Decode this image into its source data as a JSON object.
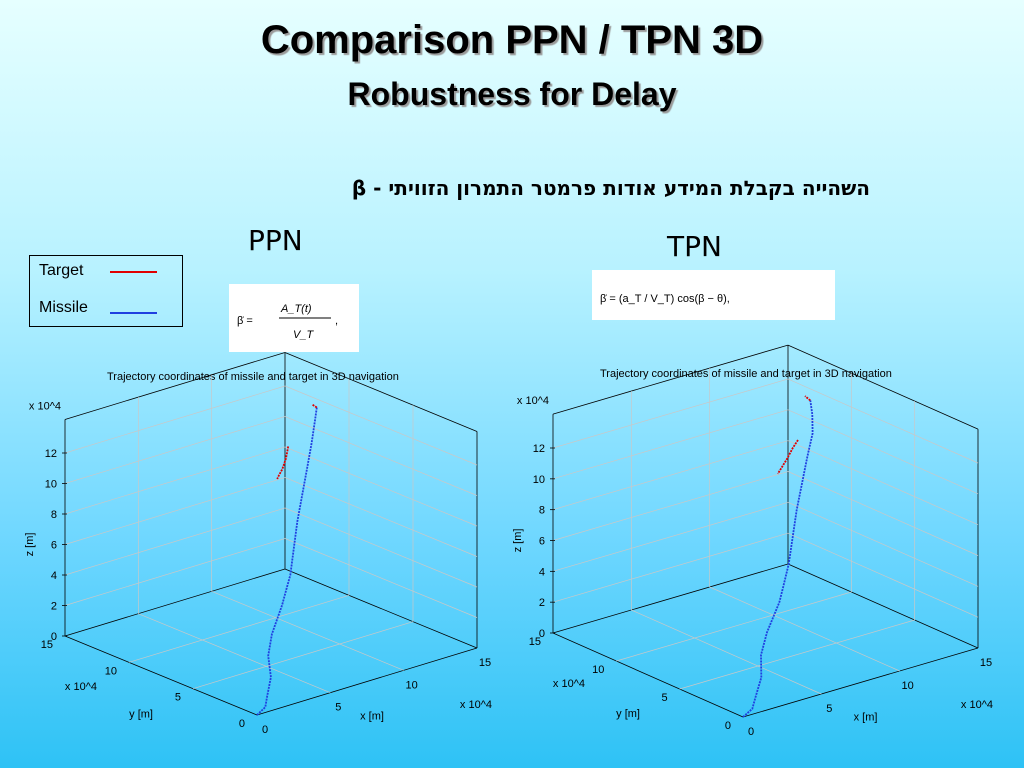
{
  "slide": {
    "title": "Comparison PPN / TPN 3D",
    "subtitle": "Robustness for Delay",
    "hebrew_text": "השהייה בקבלת המידע אודות פרמטר התמרון הזוויתי - β"
  },
  "methods": {
    "ppn": {
      "label": "PPN",
      "formula": {
        "lhs": "β̇ = ",
        "numerator": "A_T(t)",
        "denominator": "V_T",
        "tail": ","
      }
    },
    "tpn": {
      "label": "TPN",
      "formula": "β̇ = (a_T / V_T) cos(β − θ),"
    }
  },
  "legend": {
    "items": [
      {
        "label": "Target",
        "color": "#e00000"
      },
      {
        "label": "Missile",
        "color": "#2040e0"
      }
    ]
  },
  "chart_data": [
    {
      "type": "line3d",
      "title": "Trajectory coordinates of missile and target in 3D navigation",
      "xlabel": "x [m]",
      "ylabel": "y [m]",
      "zlabel": "z [m]",
      "x_multiplier": "x 10^4",
      "y_multiplier": "x 10^4",
      "z_multiplier": "x 10^4",
      "xticks": [
        "0",
        "5",
        "10",
        "15"
      ],
      "yticks": [
        "0",
        "5",
        "10",
        "15"
      ],
      "zticks": [
        "0",
        "2",
        "4",
        "6",
        "8",
        "10",
        "12"
      ],
      "grid": true,
      "series": [
        {
          "name": "Missile",
          "color": "#2040e0",
          "points": [
            [
              0,
              0,
              0
            ],
            [
              1,
              0.5,
              0.05
            ],
            [
              2,
              1.5,
              0.1
            ],
            [
              4,
              3.5,
              0.1
            ],
            [
              6,
              6,
              0.05
            ],
            [
              8,
              8,
              0.2
            ],
            [
              10,
              9.5,
              1.0
            ],
            [
              10.5,
              9.8,
              1.6
            ],
            [
              11,
              10,
              2.5
            ],
            [
              11.5,
              10.3,
              4.0
            ],
            [
              12,
              10.6,
              5.5
            ],
            [
              12.5,
              10.8,
              7.0
            ],
            [
              13,
              11,
              8.5
            ],
            [
              13.5,
              11.2,
              10.0
            ],
            [
              14,
              11.5,
              11.3
            ],
            [
              14.2,
              11.6,
              12.0
            ]
          ]
        },
        {
          "name": "Target",
          "color": "#e00000",
          "points": [
            [
              13.3,
              12.8,
              9.3
            ],
            [
              12.8,
              12.4,
              8.8
            ],
            [
              12.2,
              12.0,
              8.4
            ],
            [
              11.8,
              11.8,
              8.2
            ],
            [
              11.5,
              11.6,
              8.1
            ]
          ]
        },
        {
          "name": "Target (top)",
          "color": "#e00000",
          "points": [
            [
              14.2,
              11.6,
              12.0
            ],
            [
              14.0,
              11.7,
              12.2
            ]
          ]
        }
      ]
    },
    {
      "type": "line3d",
      "title": "Trajectory coordinates of missile and target in 3D navigation",
      "xlabel": "x [m]",
      "ylabel": "y [m]",
      "zlabel": "z [m]",
      "x_multiplier": "x 10^4",
      "y_multiplier": "x 10^4",
      "z_multiplier": "x 10^4",
      "xticks": [
        "0",
        "5",
        "10",
        "15"
      ],
      "yticks": [
        "0",
        "5",
        "10",
        "15"
      ],
      "zticks": [
        "0",
        "2",
        "4",
        "6",
        "8",
        "10",
        "12"
      ],
      "grid": true,
      "series": [
        {
          "name": "Missile",
          "color": "#2040e0",
          "points": [
            [
              0,
              0,
              0
            ],
            [
              1,
              0.5,
              0.05
            ],
            [
              2,
              1.5,
              0.1
            ],
            [
              4,
              3.5,
              0.1
            ],
            [
              6,
              6,
              0.05
            ],
            [
              8,
              8,
              0.2
            ],
            [
              10,
              9.5,
              1.0
            ],
            [
              10.5,
              9.8,
              1.8
            ],
            [
              11,
              10,
              3.0
            ],
            [
              11.5,
              10.3,
              4.5
            ],
            [
              12,
              10.6,
              6.0
            ],
            [
              12.5,
              10.8,
              7.5
            ],
            [
              13,
              11,
              9.0
            ],
            [
              13.5,
              11.2,
              10.3
            ],
            [
              13.8,
              11.6,
              11.3
            ],
            [
              14,
              12.0,
              12.0
            ]
          ]
        },
        {
          "name": "Target",
          "color": "#e00000",
          "points": [
            [
              13.7,
              12.6,
              9.3
            ],
            [
              13.2,
              12.4,
              9.0
            ],
            [
              12.6,
              12.1,
              8.6
            ],
            [
              12.0,
              11.8,
              8.3
            ],
            [
              11.6,
              11.6,
              8.1
            ]
          ]
        },
        {
          "name": "Target (top)",
          "color": "#e00000",
          "points": [
            [
              14,
              12.0,
              12.0
            ],
            [
              13.9,
              12.3,
              12.2
            ]
          ]
        }
      ]
    }
  ]
}
